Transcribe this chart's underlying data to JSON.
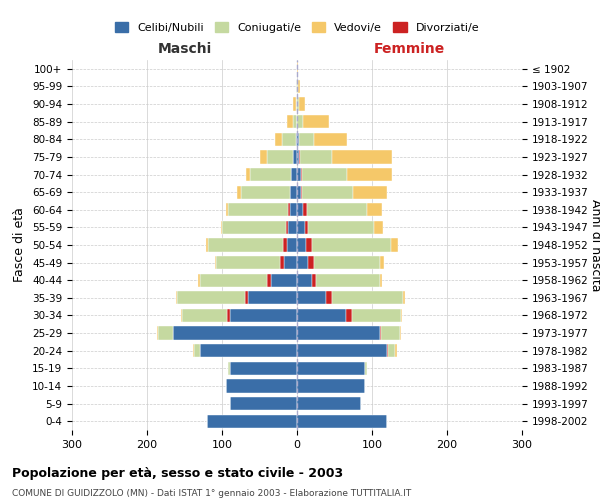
{
  "age_groups": [
    "0-4",
    "5-9",
    "10-14",
    "15-19",
    "20-24",
    "25-29",
    "30-34",
    "35-39",
    "40-44",
    "45-49",
    "50-54",
    "55-59",
    "60-64",
    "65-69",
    "70-74",
    "75-79",
    "80-84",
    "85-89",
    "90-94",
    "95-99",
    "100+"
  ],
  "birth_years": [
    "1998-2002",
    "1993-1997",
    "1988-1992",
    "1983-1987",
    "1978-1982",
    "1973-1977",
    "1968-1972",
    "1963-1967",
    "1958-1962",
    "1953-1957",
    "1948-1952",
    "1943-1947",
    "1938-1942",
    "1933-1937",
    "1928-1932",
    "1923-1927",
    "1918-1922",
    "1913-1917",
    "1908-1912",
    "1903-1907",
    "≤ 1902"
  ],
  "maschi": {
    "celibe": [
      120,
      90,
      95,
      90,
      130,
      165,
      90,
      65,
      35,
      18,
      14,
      12,
      10,
      10,
      8,
      5,
      2,
      0,
      0,
      0,
      0
    ],
    "coniugato": [
      0,
      0,
      0,
      2,
      8,
      20,
      60,
      90,
      90,
      85,
      100,
      85,
      80,
      65,
      55,
      35,
      18,
      5,
      2,
      1,
      0
    ],
    "vedovo": [
      0,
      0,
      0,
      0,
      1,
      2,
      2,
      2,
      2,
      2,
      2,
      2,
      3,
      5,
      5,
      10,
      10,
      8,
      3,
      1,
      0
    ],
    "divorziato": [
      0,
      0,
      0,
      0,
      0,
      0,
      3,
      5,
      5,
      5,
      5,
      3,
      2,
      0,
      0,
      0,
      0,
      0,
      0,
      0,
      0
    ]
  },
  "femmine": {
    "nubile": [
      120,
      85,
      90,
      90,
      120,
      110,
      65,
      38,
      20,
      15,
      12,
      10,
      8,
      5,
      5,
      3,
      2,
      0,
      0,
      0,
      0
    ],
    "coniugata": [
      0,
      0,
      0,
      3,
      10,
      25,
      65,
      95,
      85,
      88,
      105,
      88,
      80,
      68,
      60,
      42,
      20,
      8,
      3,
      1,
      0
    ],
    "vedova": [
      0,
      0,
      0,
      0,
      2,
      2,
      2,
      3,
      3,
      5,
      10,
      12,
      20,
      45,
      60,
      80,
      45,
      35,
      8,
      3,
      1
    ],
    "divorziata": [
      0,
      0,
      0,
      0,
      1,
      2,
      8,
      8,
      5,
      8,
      8,
      5,
      5,
      2,
      1,
      1,
      0,
      0,
      0,
      0,
      0
    ]
  },
  "colors": {
    "celibe": "#3a6ea8",
    "coniugato": "#c5d9a0",
    "vedovo": "#f5c869",
    "divorziato": "#cc2222"
  },
  "xlim": 300,
  "title": "Popolazione per età, sesso e stato civile - 2003",
  "subtitle": "COMUNE DI GUIDIZZOLO (MN) - Dati ISTAT 1° gennaio 2003 - Elaborazione TUTTITALIA.IT",
  "ylabel": "Fasce di età",
  "ylabel_right": "Anni di nascita",
  "legend_labels": [
    "Celibi/Nubili",
    "Coniugati/e",
    "Vedovi/e",
    "Divorziati/e"
  ]
}
